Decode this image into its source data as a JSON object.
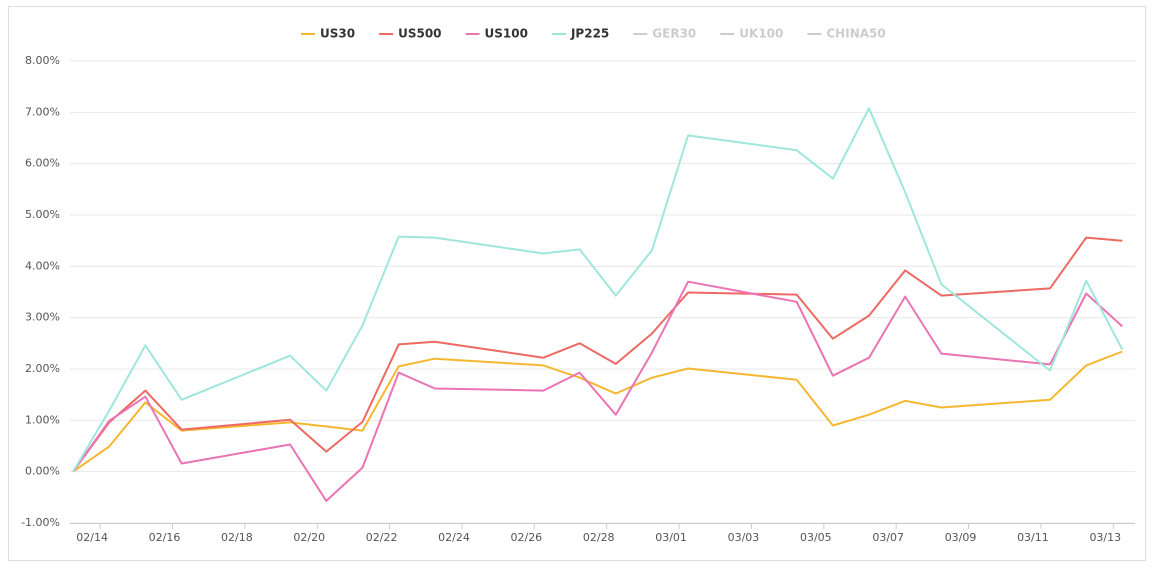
{
  "chart_data": {
    "type": "line",
    "x": [
      "02/13",
      "02/14",
      "02/15",
      "02/16",
      "02/19",
      "02/20",
      "02/21",
      "02/22",
      "02/23",
      "02/26",
      "02/27",
      "02/28",
      "02/29",
      "03/01",
      "03/04",
      "03/05",
      "03/06",
      "03/07",
      "03/08",
      "03/11",
      "03/12",
      "03/13"
    ],
    "series": [
      {
        "name": "US30",
        "color": "#f5b731",
        "values": [
          0,
          0.49,
          1.35,
          0.8,
          0.96,
          0.88,
          0.8,
          2.05,
          2.2,
          2.07,
          1.83,
          1.52,
          1.83,
          2.01,
          1.79,
          0.9,
          1.11,
          1.38,
          1.25,
          1.4,
          2.07,
          2.34
        ]
      },
      {
        "name": "US500",
        "color": "#ec6a63",
        "values": [
          0,
          0.96,
          1.58,
          0.82,
          1.01,
          0.39,
          0.97,
          2.48,
          2.53,
          2.22,
          2.5,
          2.1,
          2.69,
          3.49,
          3.45,
          2.59,
          3.04,
          3.92,
          3.43,
          3.57,
          4.56,
          4.5
        ]
      },
      {
        "name": "US100",
        "color": "#ea74b4",
        "values": [
          0,
          0.99,
          1.46,
          0.16,
          0.53,
          -0.57,
          0.08,
          1.93,
          1.62,
          1.58,
          1.93,
          1.11,
          2.32,
          3.7,
          3.31,
          1.87,
          2.22,
          3.41,
          2.3,
          2.09,
          3.47,
          2.83
        ]
      },
      {
        "name": "JP225",
        "color": "#9fe6dc",
        "values": [
          0,
          1.19,
          2.46,
          1.4,
          2.26,
          1.58,
          2.85,
          4.58,
          4.56,
          4.25,
          4.33,
          3.43,
          4.31,
          6.55,
          6.26,
          5.71,
          7.08,
          5.44,
          3.65,
          1.97,
          3.72,
          2.38
        ]
      }
    ],
    "legend_inactive": [
      "GER30",
      "UK100",
      "CHINA50"
    ],
    "legend": "top",
    "grid": true,
    "xlim": [
      "02/13",
      "03/13"
    ],
    "xticks": [
      "02/14",
      "02/16",
      "02/18",
      "02/20",
      "02/22",
      "02/24",
      "02/26",
      "02/28",
      "03/01",
      "03/03",
      "03/05",
      "03/07",
      "03/09",
      "03/11",
      "03/13"
    ],
    "ylim": [
      -1,
      8
    ],
    "yticks": [
      {
        "value": -1,
        "label": "-1.00%"
      },
      {
        "value": 0,
        "label": "0.00%"
      },
      {
        "value": 1,
        "label": "1.00%"
      },
      {
        "value": 2,
        "label": "2.00%"
      },
      {
        "value": 3,
        "label": "3.00%"
      },
      {
        "value": 4,
        "label": "4.00%"
      },
      {
        "value": 5,
        "label": "5.00%"
      },
      {
        "value": 6,
        "label": "6.00%"
      },
      {
        "value": 7,
        "label": "7.00%"
      },
      {
        "value": 8,
        "label": "8.00%"
      }
    ]
  }
}
